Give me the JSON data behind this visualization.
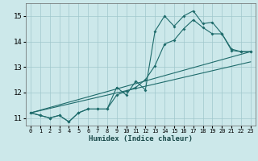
{
  "xlabel": "Humidex (Indice chaleur)",
  "background_color": "#cce8ea",
  "grid_color": "#a0c8cc",
  "line_color": "#1e6b6b",
  "xlim": [
    -0.5,
    23.5
  ],
  "ylim": [
    10.7,
    15.5
  ],
  "yticks": [
    11,
    12,
    13,
    14,
    15
  ],
  "xticks": [
    0,
    1,
    2,
    3,
    4,
    5,
    6,
    7,
    8,
    9,
    10,
    11,
    12,
    13,
    14,
    15,
    16,
    17,
    18,
    19,
    20,
    21,
    22,
    23
  ],
  "line1_x": [
    0,
    1,
    2,
    3,
    4,
    5,
    6,
    7,
    8,
    9,
    10,
    11,
    12,
    13,
    14,
    15,
    16,
    17,
    18,
    19,
    20,
    21,
    22,
    23
  ],
  "line1_y": [
    11.2,
    11.1,
    11.0,
    11.1,
    10.85,
    11.2,
    11.35,
    11.35,
    11.35,
    12.2,
    11.9,
    12.45,
    12.1,
    14.4,
    15.0,
    14.6,
    15.0,
    15.2,
    14.7,
    14.75,
    14.3,
    13.7,
    13.6,
    13.6
  ],
  "line2_x": [
    0,
    1,
    2,
    3,
    4,
    5,
    6,
    7,
    8,
    9,
    10,
    11,
    12,
    13,
    14,
    15,
    16,
    17,
    18,
    19,
    20,
    21,
    22,
    23
  ],
  "line2_y": [
    11.2,
    11.1,
    11.0,
    11.1,
    10.85,
    11.2,
    11.35,
    11.35,
    11.35,
    11.9,
    12.05,
    12.2,
    12.5,
    13.05,
    13.9,
    14.05,
    14.5,
    14.85,
    14.55,
    14.3,
    14.3,
    13.65,
    13.6,
    13.6
  ],
  "line3_x": [
    0,
    23
  ],
  "line3_y": [
    11.2,
    13.6
  ],
  "line4_x": [
    0,
    23
  ],
  "line4_y": [
    11.2,
    13.2
  ]
}
